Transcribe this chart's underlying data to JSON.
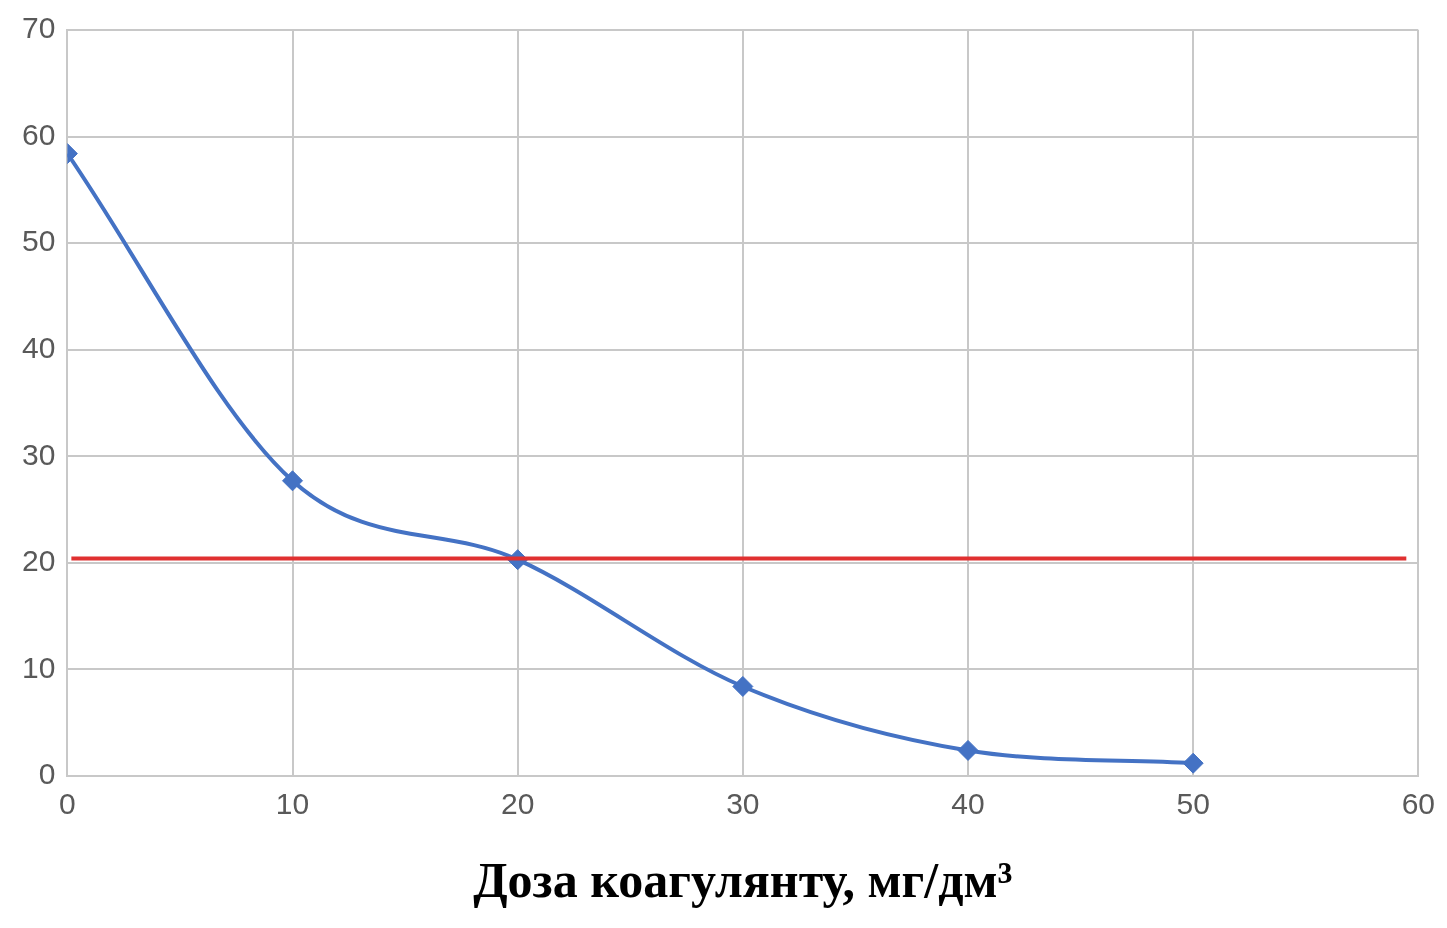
{
  "chart_data": {
    "type": "line",
    "xlabel": "Доза коагулянту, мг/дм³",
    "x": [
      0,
      10,
      20,
      30,
      40,
      50
    ],
    "series": [
      {
        "color": "#4472c4",
        "values": [
          58.4,
          27.7,
          20.3,
          8.4,
          2.4,
          1.2
        ]
      }
    ],
    "ref_lines": [
      {
        "axis": "y",
        "value": 20.4,
        "color": "#e03030"
      }
    ],
    "xlim": [
      0,
      60
    ],
    "xticks": [
      0,
      10,
      20,
      30,
      40,
      50,
      60
    ],
    "ylim": [
      0,
      70
    ],
    "yticks": [
      0,
      10,
      20,
      30,
      40,
      50,
      60,
      70
    ],
    "grid": true,
    "marker": "diamond",
    "line_style": "solid",
    "legend": false
  }
}
